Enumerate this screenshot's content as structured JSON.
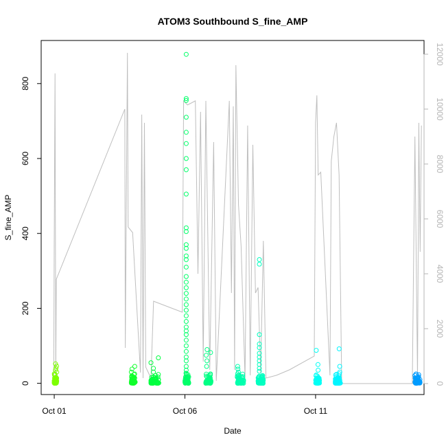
{
  "chart_data": {
    "type": "scatter",
    "title": "ATOM3 Southbound S_fine_AMP",
    "xlabel": "Date",
    "ylabel": "S_fine_AMP",
    "x_ticks": [
      "Oct 01",
      "Oct 06",
      "Oct 11"
    ],
    "x_tick_days": [
      1,
      6,
      11
    ],
    "xlim_days": [
      0.5,
      15.15
    ],
    "ylim": [
      -30,
      915
    ],
    "y_ticks": [
      0,
      200,
      400,
      600,
      800
    ],
    "ylim_right": [
      -400,
      12500
    ],
    "y_ticks_right": [
      0,
      2000,
      4000,
      6000,
      8000,
      10000,
      12000
    ],
    "grid": false,
    "legend": "none",
    "colors": {
      "frame": "#000000",
      "secondary_line": "#bebebe",
      "secondary_axis": "#b4b4b4",
      "point_gradient": [
        "#80ff00",
        "#00ff33",
        "#00ffaa",
        "#00ffff",
        "#0099ff"
      ]
    },
    "clusters": [
      {
        "day_start": 1.0,
        "day_end": 1.1,
        "max_points": [
          52,
          46,
          40,
          35,
          30
        ]
      },
      {
        "day_start": 3.95,
        "day_end": 4.1,
        "max_points": [
          45,
          38,
          30,
          25
        ]
      },
      {
        "day_start": 4.7,
        "day_end": 5.0,
        "max_points": [
          68,
          55,
          40,
          30
        ]
      },
      {
        "day_start": 6.0,
        "day_end": 6.15,
        "values": [
          878,
          760,
          755,
          710,
          670,
          640,
          600,
          570,
          505,
          415,
          405,
          370,
          360,
          340,
          330,
          310,
          285,
          270,
          255,
          240,
          225,
          210,
          195,
          180,
          165,
          150,
          140,
          130,
          115,
          100,
          85,
          70,
          60,
          45,
          35,
          25
        ]
      },
      {
        "day_start": 6.8,
        "day_end": 7.0,
        "max_points": [
          90,
          82,
          75,
          60,
          45
        ]
      },
      {
        "day_start": 8.0,
        "day_end": 8.25,
        "max_points": [
          45,
          38,
          30,
          25
        ]
      },
      {
        "day_start": 8.8,
        "day_end": 9.0,
        "values": [
          330,
          318,
          130,
          105,
          95,
          80,
          70,
          60,
          50,
          40,
          32
        ]
      },
      {
        "day_start": 11.0,
        "day_end": 11.15,
        "max_points": [
          88,
          50,
          35,
          20
        ]
      },
      {
        "day_start": 11.75,
        "day_end": 11.95,
        "max_points": [
          92,
          45,
          30,
          20
        ]
      },
      {
        "day_start": 14.8,
        "day_end": 15.0,
        "max_points": [
          12,
          10,
          8
        ]
      }
    ],
    "secondary_series": {
      "name": "",
      "path": [
        [
          0.98,
          0
        ],
        [
          1.0,
          5000
        ],
        [
          1.03,
          11300
        ],
        [
          1.06,
          200
        ],
        [
          1.08,
          3800
        ],
        [
          3.7,
          10000
        ],
        [
          3.72,
          1300
        ],
        [
          3.8,
          12050
        ],
        [
          3.83,
          5700
        ],
        [
          4.0,
          5500
        ],
        [
          4.3,
          400
        ],
        [
          4.35,
          9800
        ],
        [
          4.4,
          200
        ],
        [
          4.45,
          9500
        ],
        [
          4.5,
          600
        ],
        [
          4.7,
          200
        ],
        [
          4.8,
          3000
        ],
        [
          5.9,
          2600
        ],
        [
          5.95,
          10300
        ],
        [
          6.1,
          10150
        ],
        [
          6.4,
          10300
        ],
        [
          6.5,
          4000
        ],
        [
          6.6,
          9900
        ],
        [
          6.7,
          800
        ],
        [
          6.8,
          10300
        ],
        [
          6.95,
          500
        ],
        [
          7.1,
          8800
        ],
        [
          7.2,
          100
        ],
        [
          7.7,
          10300
        ],
        [
          7.78,
          3300
        ],
        [
          7.85,
          10100
        ],
        [
          7.9,
          500
        ],
        [
          7.95,
          11600
        ],
        [
          8.05,
          6500
        ],
        [
          8.15,
          5000
        ],
        [
          8.3,
          200
        ],
        [
          8.4,
          9400
        ],
        [
          8.5,
          300
        ],
        [
          8.6,
          8700
        ],
        [
          8.7,
          3300
        ],
        [
          8.8,
          3500
        ],
        [
          8.9,
          400
        ],
        [
          9.0,
          5200
        ],
        [
          9.1,
          200
        ],
        [
          9.5,
          300
        ],
        [
          10.0,
          500
        ],
        [
          10.95,
          1000
        ],
        [
          11.0,
          9500
        ],
        [
          11.05,
          10500
        ],
        [
          11.1,
          7600
        ],
        [
          11.2,
          7700
        ],
        [
          11.55,
          300
        ],
        [
          11.6,
          8100
        ],
        [
          11.7,
          9000
        ],
        [
          11.8,
          9500
        ],
        [
          11.9,
          7600
        ],
        [
          12.0,
          0
        ],
        [
          13.5,
          0
        ],
        [
          14.7,
          0
        ],
        [
          14.8,
          9000
        ],
        [
          14.9,
          200
        ],
        [
          14.95,
          9500
        ],
        [
          15.0,
          4800
        ],
        [
          15.05,
          9400
        ]
      ]
    }
  }
}
